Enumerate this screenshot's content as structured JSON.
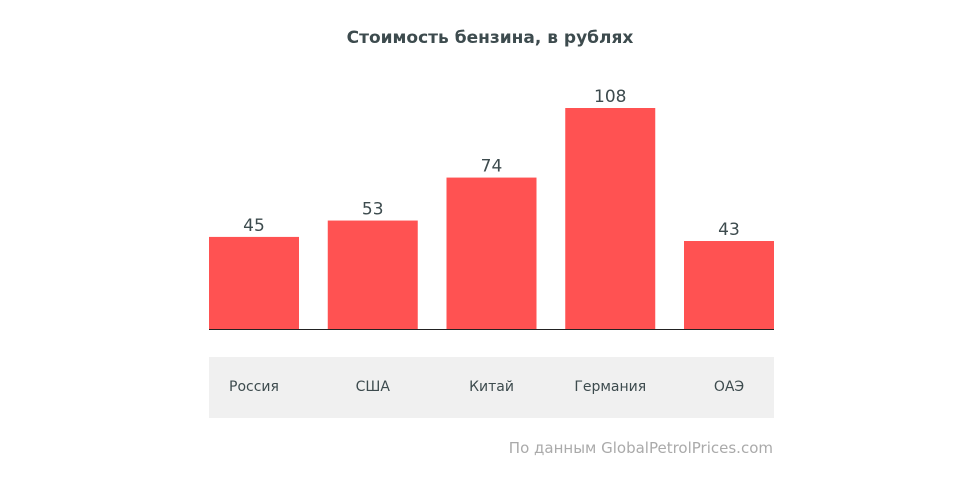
{
  "chart_data": {
    "type": "bar",
    "title": "Стоимость бензина, в рублях",
    "categories": [
      "Россия",
      "США",
      "Китай",
      "Германия",
      "ОАЭ"
    ],
    "values": [
      45,
      53,
      74,
      108,
      43
    ],
    "data_labels": [
      "45",
      "53",
      "74",
      "108",
      "43"
    ],
    "ylim": [
      0,
      108
    ],
    "grid": false,
    "bar_color": "#ff5252"
  },
  "source_text": "По данным GlobalPetrolPrices.com",
  "colors": {
    "bar": "#ff5252",
    "axis": "#222222",
    "text": "#3d4b4e",
    "band": "#f0f0f0",
    "source": "#aaaaaa"
  }
}
